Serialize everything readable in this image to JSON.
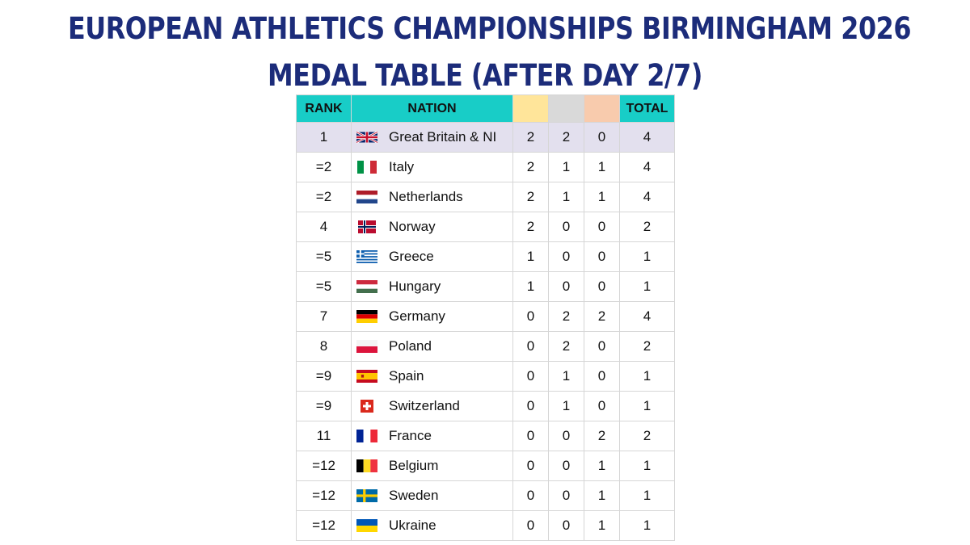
{
  "title_line1": "EUROPEAN ATHLETICS CHAMPIONSHIPS BIRMINGHAM 2026",
  "title_line2": "MEDAL TABLE (AFTER DAY 2/7)",
  "headers": {
    "rank": "RANK",
    "nation": "NATION",
    "gold": "",
    "silver": "",
    "bronze": "",
    "total": "TOTAL"
  },
  "colors": {
    "title": "#1c2c7a",
    "header_teal": "#18cdc7",
    "gold": "#ffe59a",
    "silver": "#d9d9d9",
    "bronze": "#f8cbad",
    "highlight_row": "#e3e0ee"
  },
  "rows": [
    {
      "rank": "1",
      "nation": "Great Britain & NI",
      "flag": "gb-flag-icon",
      "gold": "2",
      "silver": "2",
      "bronze": "0",
      "total": "4"
    },
    {
      "rank": "=2",
      "nation": "Italy",
      "flag": "it-flag-icon",
      "gold": "2",
      "silver": "1",
      "bronze": "1",
      "total": "4"
    },
    {
      "rank": "=2",
      "nation": "Netherlands",
      "flag": "nl-flag-icon",
      "gold": "2",
      "silver": "1",
      "bronze": "1",
      "total": "4"
    },
    {
      "rank": "4",
      "nation": "Norway",
      "flag": "no-flag-icon",
      "gold": "2",
      "silver": "0",
      "bronze": "0",
      "total": "2"
    },
    {
      "rank": "=5",
      "nation": "Greece",
      "flag": "gr-flag-icon",
      "gold": "1",
      "silver": "0",
      "bronze": "0",
      "total": "1"
    },
    {
      "rank": "=5",
      "nation": "Hungary",
      "flag": "hu-flag-icon",
      "gold": "1",
      "silver": "0",
      "bronze": "0",
      "total": "1"
    },
    {
      "rank": "7",
      "nation": "Germany",
      "flag": "de-flag-icon",
      "gold": "0",
      "silver": "2",
      "bronze": "2",
      "total": "4"
    },
    {
      "rank": "8",
      "nation": "Poland",
      "flag": "pl-flag-icon",
      "gold": "0",
      "silver": "2",
      "bronze": "0",
      "total": "2"
    },
    {
      "rank": "=9",
      "nation": "Spain",
      "flag": "es-flag-icon",
      "gold": "0",
      "silver": "1",
      "bronze": "0",
      "total": "1"
    },
    {
      "rank": "=9",
      "nation": "Switzerland",
      "flag": "ch-flag-icon",
      "gold": "0",
      "silver": "1",
      "bronze": "0",
      "total": "1"
    },
    {
      "rank": "11",
      "nation": "France",
      "flag": "fr-flag-icon",
      "gold": "0",
      "silver": "0",
      "bronze": "2",
      "total": "2"
    },
    {
      "rank": "=12",
      "nation": "Belgium",
      "flag": "be-flag-icon",
      "gold": "0",
      "silver": "0",
      "bronze": "1",
      "total": "1"
    },
    {
      "rank": "=12",
      "nation": "Sweden",
      "flag": "se-flag-icon",
      "gold": "0",
      "silver": "0",
      "bronze": "1",
      "total": "1"
    },
    {
      "rank": "=12",
      "nation": "Ukraine",
      "flag": "ua-flag-icon",
      "gold": "0",
      "silver": "0",
      "bronze": "1",
      "total": "1"
    }
  ]
}
